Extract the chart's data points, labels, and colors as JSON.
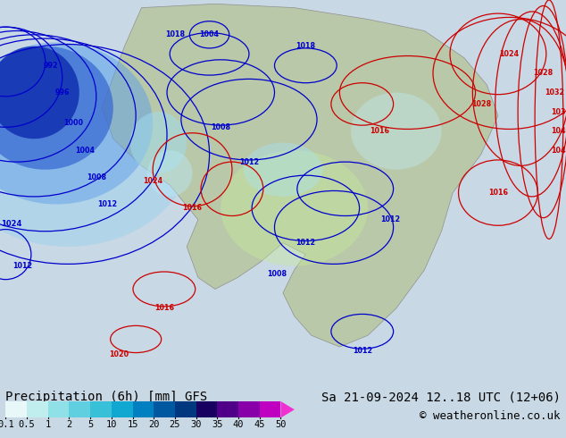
{
  "title_left": "Precipitation (6h) [mm] GFS",
  "title_right": "Sa 21-09-2024 12..18 UTC (12+06)",
  "copyright": "© weatheronline.co.uk",
  "colorbar_values": [
    0.1,
    0.5,
    1,
    2,
    5,
    10,
    15,
    20,
    25,
    30,
    35,
    40,
    45,
    50
  ],
  "precip_colors": [
    "#e8f8f8",
    "#c0eeee",
    "#90e0e8",
    "#60d0e0",
    "#38c0d8",
    "#10a8d0",
    "#0080c0",
    "#0058a0",
    "#003880",
    "#180060",
    "#500088",
    "#8800a8",
    "#c000c0",
    "#f030d0"
  ],
  "figsize": [
    6.34,
    4.9
  ],
  "dpi": 100,
  "text_color": "#000000",
  "title_fontsize": 10,
  "copyright_fontsize": 9,
  "colorbar_tick_fontsize": 7.5,
  "ocean_color": "#b8ccd8",
  "land_color": "#b8c8a8",
  "map_bg": "#c8d8e4"
}
